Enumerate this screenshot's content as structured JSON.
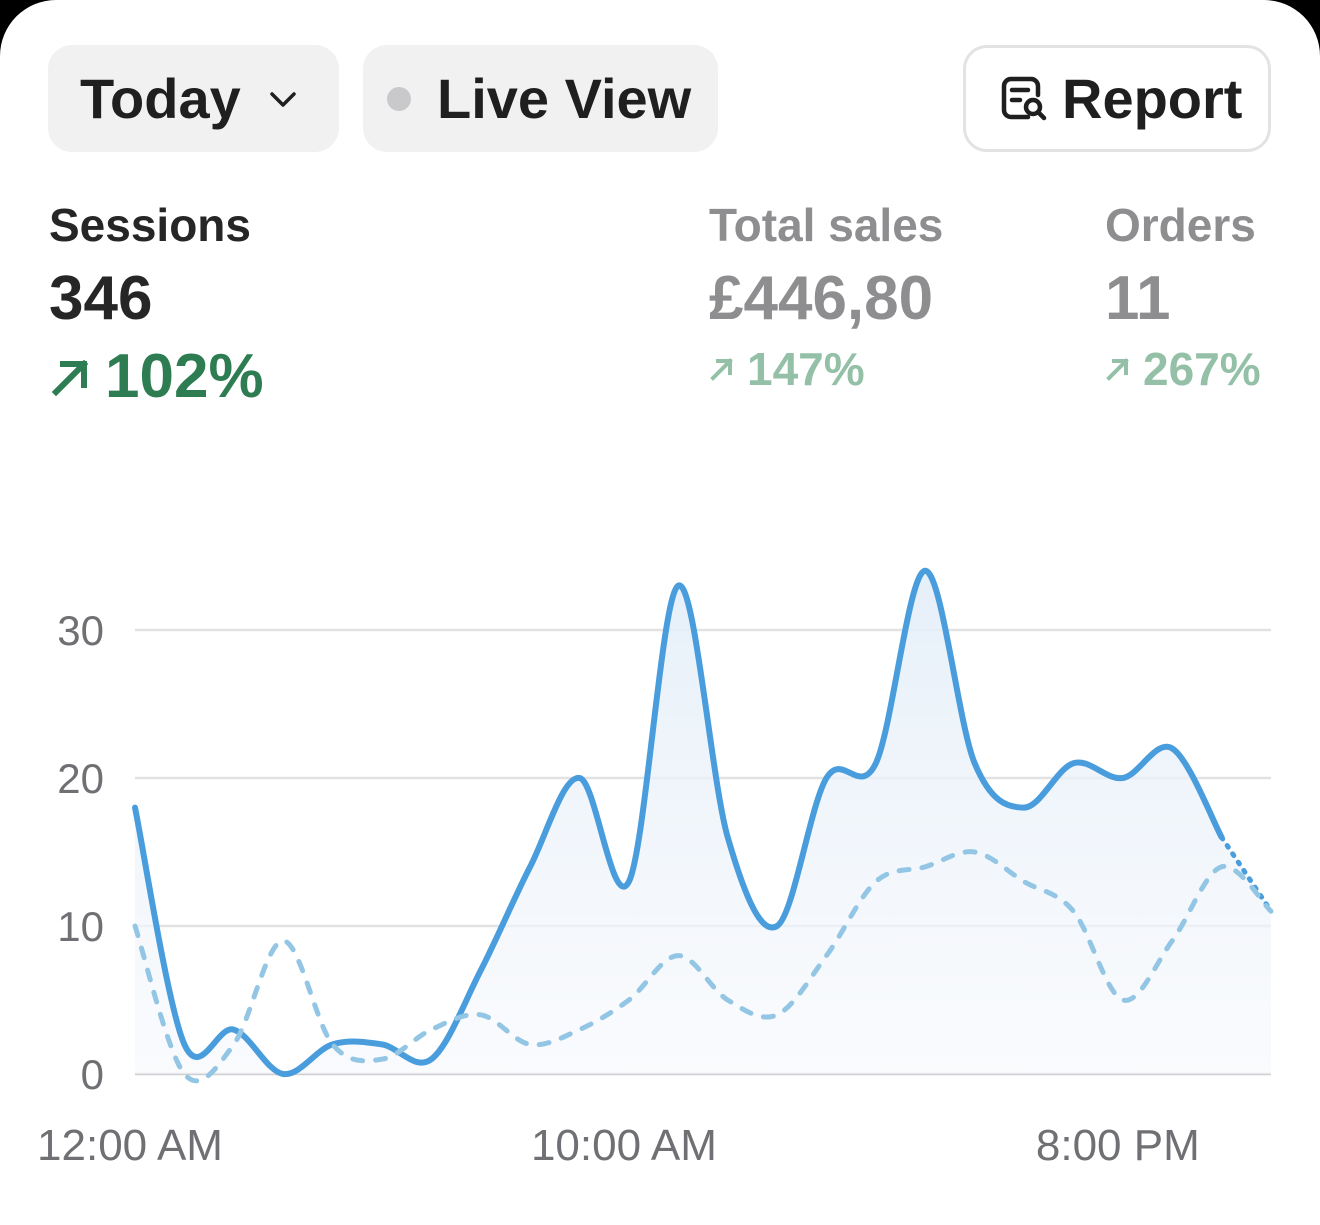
{
  "toolbar": {
    "date_filter": "Today",
    "live_view": "Live View",
    "report": "Report"
  },
  "metrics": {
    "sessions": {
      "label": "Sessions",
      "value": "346",
      "change": "102%"
    },
    "total_sales": {
      "label": "Total sales",
      "value": "£446,80",
      "change": "147%"
    },
    "orders": {
      "label": "Orders",
      "value": "11",
      "change": "267%"
    }
  },
  "icons": {
    "date_filter": "chevron-down-icon",
    "live_view": "live-dot-icon",
    "report": "report-search-icon",
    "change": "arrow-up-right-icon"
  },
  "colors": {
    "primary_line": "#4a9ddd",
    "comparison_line": "#93c6e4",
    "positive_change": "#2e7d52",
    "positive_change_muted": "#93c0a6"
  },
  "chart_data": {
    "type": "line",
    "x": [
      "12:00 AM",
      "1:00 AM",
      "2:00 AM",
      "3:00 AM",
      "4:00 AM",
      "5:00 AM",
      "6:00 AM",
      "7:00 AM",
      "8:00 AM",
      "9:00 AM",
      "10:00 AM",
      "11:00 AM",
      "12:00 PM",
      "1:00 PM",
      "2:00 PM",
      "3:00 PM",
      "4:00 PM",
      "5:00 PM",
      "6:00 PM",
      "7:00 PM",
      "8:00 PM",
      "9:00 PM",
      "10:00 PM",
      "11:00 PM"
    ],
    "x_ticks": [
      "12:00 AM",
      "10:00 AM",
      "8:00 PM"
    ],
    "y_ticks": [
      "0",
      "10",
      "20",
      "30"
    ],
    "ylim": [
      0,
      35
    ],
    "grid": true,
    "series": [
      {
        "values": [
          18,
          2,
          3,
          0,
          2,
          2,
          1,
          7,
          14,
          20,
          13,
          33,
          16,
          10,
          20,
          21,
          34,
          21,
          18,
          21,
          20,
          22,
          16,
          11
        ],
        "style": "solid",
        "fill": true
      },
      {
        "values": [
          10,
          0,
          2,
          9,
          2,
          1,
          3,
          4,
          2,
          3,
          5,
          8,
          5,
          4,
          8,
          13,
          14,
          15,
          13,
          11,
          5,
          9,
          14,
          11
        ],
        "style": "dashed",
        "fill": false
      }
    ]
  }
}
